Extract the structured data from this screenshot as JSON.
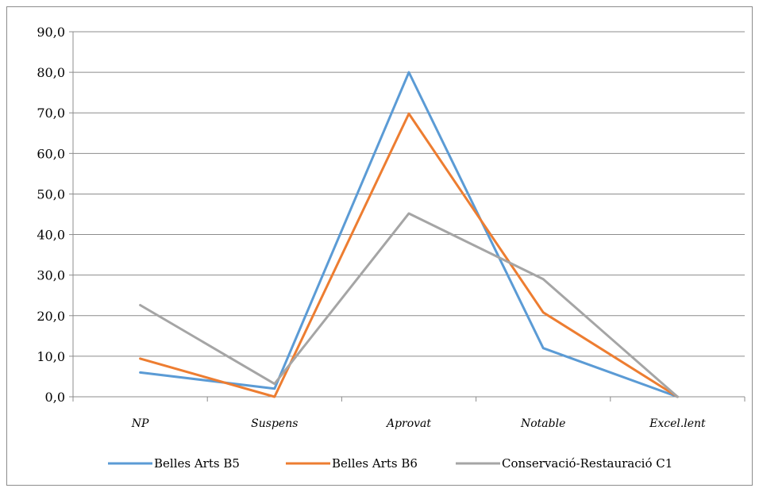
{
  "chart_data": {
    "type": "line",
    "title": "",
    "xlabel": "",
    "ylabel": "",
    "categories": [
      "NP",
      "Suspens",
      "Aprovat",
      "Notable",
      "Excel.lent"
    ],
    "ylim": [
      0,
      90
    ],
    "yticks": [
      "0,0",
      "10,0",
      "20,0",
      "30,0",
      "40,0",
      "50,0",
      "60,0",
      "70,0",
      "80,0",
      "90,0"
    ],
    "grid": true,
    "legend_position": "bottom",
    "series": [
      {
        "name": "Belles Arts B5",
        "color": "#5B9BD5",
        "values": [
          6.0,
          2.0,
          80.0,
          12.0,
          0.0
        ]
      },
      {
        "name": "Belles Arts B6",
        "color": "#ED7D31",
        "values": [
          9.4,
          0.0,
          69.8,
          20.8,
          0.0
        ]
      },
      {
        "name": "Conservació-Restauració C1",
        "color": "#A5A5A5",
        "values": [
          22.6,
          3.2,
          45.2,
          29.0,
          0.0
        ]
      }
    ]
  }
}
